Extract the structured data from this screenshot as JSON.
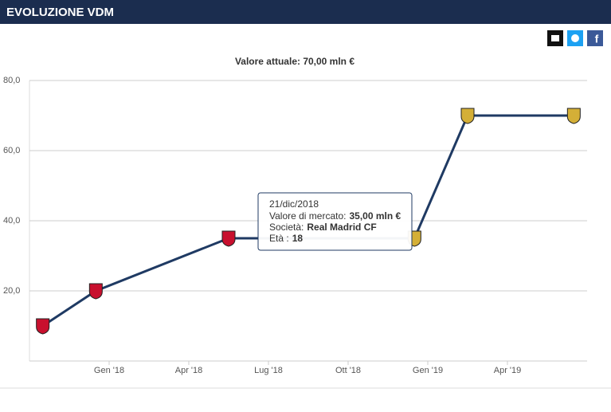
{
  "header": {
    "title": "EVOLUZIONE VDM"
  },
  "chart_data": {
    "type": "line",
    "subtitle": "Valore attuale: 70,00 mln €",
    "x": [
      "2017-10",
      "2017-12",
      "2018-05",
      "2018-12",
      "2019-02",
      "2019-06"
    ],
    "series": [
      {
        "color": "#1f3a63",
        "values": [
          10,
          20,
          35,
          35,
          70,
          70
        ],
        "marker_colors": [
          "#c8102e",
          "#c8102e",
          "#c8102e",
          "#d4af37",
          "#d4af37",
          "#d4af37"
        ]
      }
    ],
    "xlim": [
      "2017-10",
      "2019-07"
    ],
    "xticks": [
      {
        "value": "2018-01",
        "label": "Gen '18"
      },
      {
        "value": "2018-04",
        "label": "Apr '18"
      },
      {
        "value": "2018-07",
        "label": "Lug '18"
      },
      {
        "value": "2018-10",
        "label": "Ott '18"
      },
      {
        "value": "2019-01",
        "label": "Gen '19"
      },
      {
        "value": "2019-04",
        "label": "Apr '19"
      }
    ],
    "ylim": [
      0,
      80
    ],
    "yticks": [
      {
        "value": 20,
        "label": "20,0"
      },
      {
        "value": 40,
        "label": "40,0"
      },
      {
        "value": 60,
        "label": "60,0"
      },
      {
        "value": 80,
        "label": "80,0"
      }
    ],
    "grid": true,
    "tooltip": {
      "point": 3,
      "title": "21/dic/2018",
      "rows": [
        {
          "label": "Valore di mercato:",
          "value": "35,00 mln €"
        },
        {
          "label": "Società:",
          "value": "Real Madrid CF"
        },
        {
          "label": "Età :",
          "value": "18"
        }
      ]
    }
  }
}
